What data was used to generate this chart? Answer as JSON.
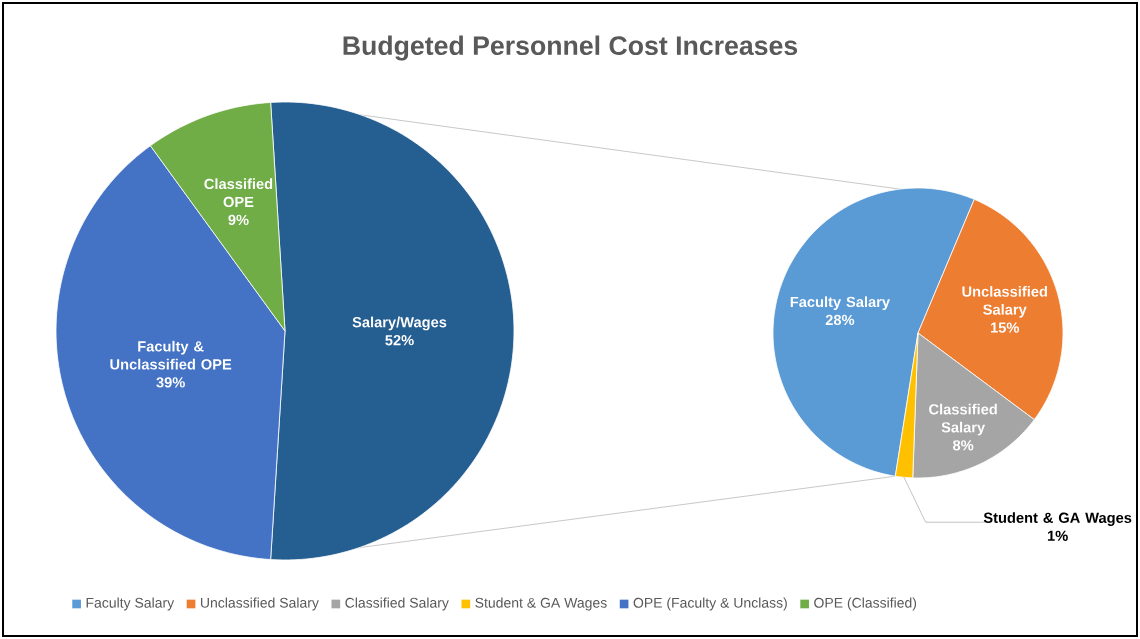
{
  "chart_data": [
    {
      "type": "pie",
      "title": "Budgeted Personnel Cost Increases",
      "categories": [
        "Salary/Wages",
        "Faculty & Unclassified OPE",
        "Classified OPE"
      ],
      "values": [
        52,
        39,
        9
      ],
      "colors": [
        "#255e91",
        "#4472c4",
        "#70ad47"
      ],
      "value_labels": [
        "52%",
        "39%",
        "9%"
      ]
    },
    {
      "type": "pie",
      "categories": [
        "Faculty Salary",
        "Unclassified Salary",
        "Classified Salary",
        "Student & GA Wages"
      ],
      "values": [
        28,
        15,
        8,
        1
      ],
      "colors": [
        "#5b9bd5",
        "#ed7d31",
        "#a5a5a5",
        "#ffc000"
      ],
      "value_labels": [
        "28%",
        "15%",
        "8%",
        "1%"
      ]
    },
    {
      "type": "other",
      "categories": [
        "Faculty Salary",
        "Unclassified Salary",
        "Classified Salary",
        "Student & GA Wages",
        "OPE (Faculty & Unclass)",
        "OPE (Classified)"
      ],
      "colors": [
        "#5b9bd5",
        "#ed7d31",
        "#a5a5a5",
        "#ffc000",
        "#4472c4",
        "#70ad47"
      ]
    }
  ]
}
